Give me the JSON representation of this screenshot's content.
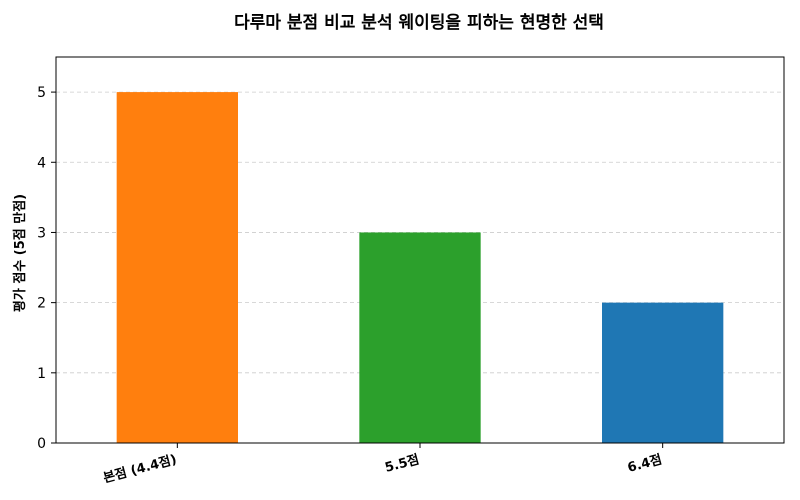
{
  "chart_data": {
    "type": "bar",
    "title": "다루마 분점 비교 분석 웨이팅을 피하는 현명한 선택",
    "xlabel": "",
    "ylabel": "평가 점수 (5점 만점)",
    "categories": [
      "본점 (4.4점)",
      "5.5점",
      "6.4점"
    ],
    "values": [
      5,
      3,
      2
    ],
    "colors": [
      "#ff7f0e",
      "#2ca02c",
      "#1f77b4"
    ],
    "ylim": [
      0,
      5.5
    ],
    "yticks": [
      0,
      1,
      2,
      3,
      4,
      5
    ],
    "grid": "y-dashed"
  }
}
